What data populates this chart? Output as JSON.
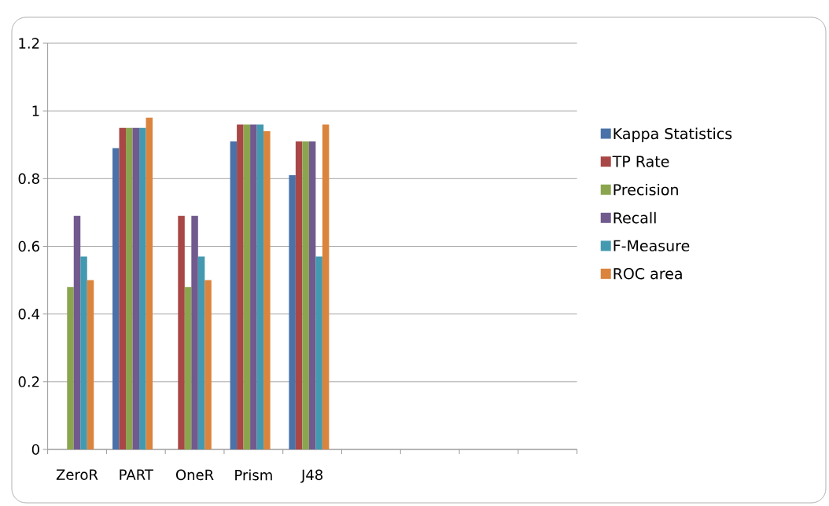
{
  "chart_data": {
    "type": "bar",
    "categories": [
      "ZeroR",
      "PART",
      "OneR",
      "Prism",
      "J48",
      null,
      null,
      null,
      null
    ],
    "series": [
      {
        "name": "Kappa Statistics",
        "color": "#4a72a8",
        "values": [
          null,
          0.89,
          null,
          0.91,
          0.81,
          null,
          null,
          null,
          null
        ]
      },
      {
        "name": "TP Rate",
        "color": "#a94746",
        "values": [
          null,
          0.95,
          0.69,
          0.96,
          0.91,
          null,
          null,
          null,
          null
        ]
      },
      {
        "name": "Precision",
        "color": "#8ba54e",
        "values": [
          0.48,
          0.95,
          0.48,
          0.96,
          0.91,
          null,
          null,
          null,
          null
        ]
      },
      {
        "name": "Recall",
        "color": "#715a8e",
        "values": [
          0.69,
          0.95,
          0.69,
          0.96,
          0.91,
          null,
          null,
          null,
          null
        ]
      },
      {
        "name": "F-Measure",
        "color": "#4399b0",
        "values": [
          0.57,
          0.95,
          0.57,
          0.96,
          0.57,
          null,
          null,
          null,
          null
        ]
      },
      {
        "name": "ROC area",
        "color": "#db843d",
        "values": [
          0.5,
          0.98,
          0.5,
          0.94,
          0.96,
          null,
          null,
          null,
          null
        ]
      },
      {
        "color": "#95b3d7",
        "values": [
          null,
          null,
          null,
          null,
          null,
          null,
          null,
          null,
          null
        ]
      }
    ],
    "ylim": [
      0,
      1.2
    ],
    "yticks": [
      0,
      0.2,
      0.4,
      0.6,
      0.8,
      1,
      1.2
    ],
    "grid": "y",
    "legend": "right"
  }
}
